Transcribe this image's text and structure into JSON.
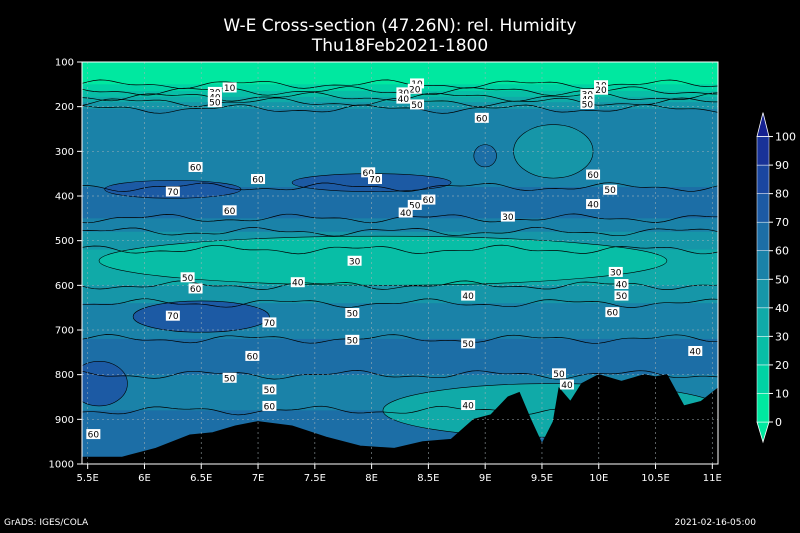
{
  "header": {
    "title": "W-E Cross-section (47.26N): rel. Humidity",
    "subtitle": "Thu18Feb2021-1800"
  },
  "footer": {
    "credit": "GrADS: IGES/COLA",
    "date": "2021-02-16-05:00"
  },
  "chart_data": {
    "type": "heatmap",
    "variable": "rel. Humidity",
    "latitude": "47.26N",
    "valid_time": "Thu18Feb2021-1800",
    "x_axis": {
      "range": [
        5.45,
        11.05
      ],
      "ticks": [
        5.5,
        6,
        6.5,
        7,
        7.5,
        8,
        8.5,
        9,
        9.5,
        10,
        10.5,
        11
      ],
      "tick_labels": [
        "5.5E",
        "6E",
        "6.5E",
        "7E",
        "7.5E",
        "8E",
        "8.5E",
        "9E",
        "9.5E",
        "10E",
        "10.5E",
        "11E"
      ]
    },
    "y_axis": {
      "range": [
        100,
        1000
      ],
      "inverted": true,
      "ticks": [
        100,
        200,
        300,
        400,
        500,
        600,
        700,
        800,
        900,
        1000
      ],
      "tick_labels": [
        "100",
        "200",
        "300",
        "400",
        "500",
        "600",
        "700",
        "800",
        "900",
        "1000"
      ]
    },
    "grid": true,
    "colorbar": {
      "position": "right",
      "levels": [
        0,
        10,
        20,
        30,
        40,
        50,
        60,
        70,
        80,
        90,
        100
      ],
      "labels": [
        "0",
        "10",
        "20",
        "30",
        "40",
        "50",
        "60",
        "70",
        "80",
        "90",
        "100"
      ],
      "colors": [
        "#00e8a0",
        "#00d2a4",
        "#08bea6",
        "#10aaa8",
        "#1696a8",
        "#1a82a8",
        "#1c6ea6",
        "#1c5aa4",
        "#1a46a0",
        "#183298",
        "#142090"
      ]
    },
    "bands": [
      {
        "from_pressure": 100,
        "to_pressure": 150,
        "value": 5
      },
      {
        "from_pressure": 150,
        "to_pressure": 165,
        "value": 15
      },
      {
        "from_pressure": 165,
        "to_pressure": 178,
        "value": 25
      },
      {
        "from_pressure": 178,
        "to_pressure": 190,
        "value": 35
      },
      {
        "from_pressure": 190,
        "to_pressure": 205,
        "value": 45
      },
      {
        "from_pressure": 205,
        "to_pressure": 380,
        "value": 55
      },
      {
        "from_pressure": 380,
        "to_pressure": 450,
        "value": 65
      },
      {
        "from_pressure": 450,
        "to_pressure": 480,
        "value": 55
      },
      {
        "from_pressure": 480,
        "to_pressure": 520,
        "value": 45
      },
      {
        "from_pressure": 520,
        "to_pressure": 600,
        "value": 35
      },
      {
        "from_pressure": 600,
        "to_pressure": 640,
        "value": 45
      },
      {
        "from_pressure": 640,
        "to_pressure": 720,
        "value": 55
      },
      {
        "from_pressure": 720,
        "to_pressure": 800,
        "value": 65
      },
      {
        "from_pressure": 800,
        "to_pressure": 880,
        "value": 55
      },
      {
        "from_pressure": 880,
        "to_pressure": 1000,
        "value": 65
      }
    ],
    "blobs": [
      {
        "lon": 8.0,
        "pressure": 370,
        "rx": 0.7,
        "ry": 20,
        "value": 75
      },
      {
        "lon": 6.25,
        "pressure": 385,
        "rx": 0.6,
        "ry": 20,
        "value": 75
      },
      {
        "lon": 8.1,
        "pressure": 545,
        "rx": 2.5,
        "ry": 55,
        "value": 25
      },
      {
        "lon": 6.5,
        "pressure": 670,
        "rx": 0.6,
        "ry": 35,
        "value": 75
      },
      {
        "lon": 9.6,
        "pressure": 300,
        "rx": 0.35,
        "ry": 60,
        "value": 45
      },
      {
        "lon": 9.0,
        "pressure": 310,
        "rx": 0.1,
        "ry": 25,
        "value": 65
      },
      {
        "lon": 9.6,
        "pressure": 880,
        "rx": 1.5,
        "ry": 60,
        "value": 35
      },
      {
        "lon": 5.6,
        "pressure": 820,
        "rx": 0.25,
        "ry": 50,
        "value": 75
      }
    ],
    "terrain": [
      [
        5.45,
        985
      ],
      [
        5.8,
        985
      ],
      [
        6.1,
        965
      ],
      [
        6.4,
        935
      ],
      [
        6.6,
        930
      ],
      [
        6.8,
        915
      ],
      [
        7.0,
        905
      ],
      [
        7.3,
        915
      ],
      [
        7.6,
        940
      ],
      [
        7.9,
        960
      ],
      [
        8.2,
        965
      ],
      [
        8.45,
        950
      ],
      [
        8.7,
        945
      ],
      [
        8.9,
        900
      ],
      [
        9.05,
        890
      ],
      [
        9.2,
        850
      ],
      [
        9.3,
        840
      ],
      [
        9.4,
        900
      ],
      [
        9.5,
        955
      ],
      [
        9.6,
        905
      ],
      [
        9.65,
        830
      ],
      [
        9.75,
        860
      ],
      [
        9.85,
        820
      ],
      [
        10.0,
        800
      ],
      [
        10.2,
        815
      ],
      [
        10.4,
        800
      ],
      [
        10.5,
        805
      ],
      [
        10.6,
        800
      ],
      [
        10.75,
        870
      ],
      [
        10.9,
        860
      ],
      [
        11.0,
        840
      ],
      [
        11.05,
        830
      ]
    ],
    "contour_labels": [
      {
        "lon": 6.75,
        "pressure": 157,
        "text": "10"
      },
      {
        "lon": 6.62,
        "pressure": 167,
        "text": "30"
      },
      {
        "lon": 6.62,
        "pressure": 178,
        "text": "40"
      },
      {
        "lon": 6.62,
        "pressure": 190,
        "text": "50"
      },
      {
        "lon": 8.4,
        "pressure": 148,
        "text": "10"
      },
      {
        "lon": 8.38,
        "pressure": 160,
        "text": "20"
      },
      {
        "lon": 8.28,
        "pressure": 168,
        "text": "30"
      },
      {
        "lon": 8.28,
        "pressure": 182,
        "text": "40"
      },
      {
        "lon": 8.4,
        "pressure": 195,
        "text": "50"
      },
      {
        "lon": 10.02,
        "pressure": 152,
        "text": "10"
      },
      {
        "lon": 10.02,
        "pressure": 162,
        "text": "20"
      },
      {
        "lon": 9.9,
        "pressure": 172,
        "text": "30"
      },
      {
        "lon": 9.9,
        "pressure": 183,
        "text": "40"
      },
      {
        "lon": 9.9,
        "pressure": 194,
        "text": "50"
      },
      {
        "lon": 8.97,
        "pressure": 225,
        "text": "60"
      },
      {
        "lon": 6.45,
        "pressure": 335,
        "text": "60"
      },
      {
        "lon": 7.0,
        "pressure": 362,
        "text": "60"
      },
      {
        "lon": 6.75,
        "pressure": 432,
        "text": "60"
      },
      {
        "lon": 6.25,
        "pressure": 390,
        "text": "70"
      },
      {
        "lon": 7.97,
        "pressure": 347,
        "text": "60"
      },
      {
        "lon": 8.03,
        "pressure": 362,
        "text": "70"
      },
      {
        "lon": 8.5,
        "pressure": 408,
        "text": "60"
      },
      {
        "lon": 8.38,
        "pressure": 420,
        "text": "50"
      },
      {
        "lon": 8.3,
        "pressure": 437,
        "text": "40"
      },
      {
        "lon": 9.95,
        "pressure": 352,
        "text": "60"
      },
      {
        "lon": 10.1,
        "pressure": 386,
        "text": "50"
      },
      {
        "lon": 9.95,
        "pressure": 418,
        "text": "40"
      },
      {
        "lon": 9.2,
        "pressure": 446,
        "text": "30"
      },
      {
        "lon": 7.85,
        "pressure": 545,
        "text": "30"
      },
      {
        "lon": 6.38,
        "pressure": 582,
        "text": "50"
      },
      {
        "lon": 6.45,
        "pressure": 607,
        "text": "60"
      },
      {
        "lon": 7.35,
        "pressure": 593,
        "text": "40"
      },
      {
        "lon": 6.25,
        "pressure": 668,
        "text": "70"
      },
      {
        "lon": 7.1,
        "pressure": 683,
        "text": "70"
      },
      {
        "lon": 7.83,
        "pressure": 662,
        "text": "50"
      },
      {
        "lon": 7.83,
        "pressure": 722,
        "text": "50"
      },
      {
        "lon": 6.95,
        "pressure": 758,
        "text": "60"
      },
      {
        "lon": 6.75,
        "pressure": 807,
        "text": "50"
      },
      {
        "lon": 7.1,
        "pressure": 833,
        "text": "50"
      },
      {
        "lon": 7.1,
        "pressure": 870,
        "text": "60"
      },
      {
        "lon": 5.55,
        "pressure": 933,
        "text": "60"
      },
      {
        "lon": 8.85,
        "pressure": 623,
        "text": "40"
      },
      {
        "lon": 8.85,
        "pressure": 730,
        "text": "50"
      },
      {
        "lon": 8.85,
        "pressure": 868,
        "text": "40"
      },
      {
        "lon": 10.15,
        "pressure": 570,
        "text": "30"
      },
      {
        "lon": 10.2,
        "pressure": 597,
        "text": "40"
      },
      {
        "lon": 10.2,
        "pressure": 623,
        "text": "50"
      },
      {
        "lon": 10.12,
        "pressure": 660,
        "text": "60"
      },
      {
        "lon": 9.65,
        "pressure": 797,
        "text": "50"
      },
      {
        "lon": 9.72,
        "pressure": 822,
        "text": "40"
      },
      {
        "lon": 10.85,
        "pressure": 747,
        "text": "40"
      }
    ],
    "contour_lines": [
      {
        "pressure": 150
      },
      {
        "pressure": 165
      },
      {
        "pressure": 178
      },
      {
        "pressure": 190
      },
      {
        "pressure": 205
      },
      {
        "pressure": 380
      },
      {
        "pressure": 450
      },
      {
        "pressure": 480
      },
      {
        "pressure": 520
      },
      {
        "pressure": 600
      },
      {
        "pressure": 640
      },
      {
        "pressure": 720
      },
      {
        "pressure": 800
      },
      {
        "pressure": 880
      }
    ]
  }
}
